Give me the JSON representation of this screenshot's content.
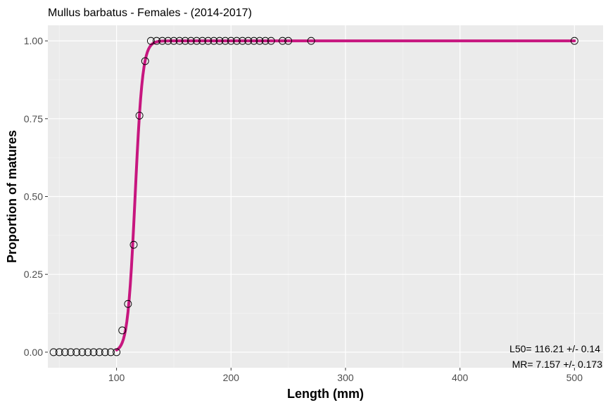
{
  "chart_data": {
    "type": "scatter",
    "title": "Mullus barbatus - Females - (2014-2017)",
    "xlabel": "Length (mm)",
    "ylabel": "Proportion of matures",
    "xlim": [
      40,
      525
    ],
    "ylim": [
      -0.05,
      1.05
    ],
    "x_ticks": [
      100,
      200,
      300,
      400,
      500
    ],
    "y_ticks": [
      0.0,
      0.25,
      0.5,
      0.75,
      1.0
    ],
    "x_tick_labels": [
      "100",
      "200",
      "300",
      "400",
      "500"
    ],
    "y_tick_labels": [
      "0.00",
      "0.25",
      "0.50",
      "0.75",
      "1.00"
    ],
    "grid": true,
    "background": "#ebebeb",
    "series": [
      {
        "kind": "observed_points",
        "marker": "open-circle",
        "color": "#000000",
        "points": [
          [
            45,
            0
          ],
          [
            50,
            0
          ],
          [
            55,
            0
          ],
          [
            60,
            0
          ],
          [
            65,
            0
          ],
          [
            70,
            0
          ],
          [
            75,
            0
          ],
          [
            80,
            0
          ],
          [
            85,
            0
          ],
          [
            90,
            0
          ],
          [
            95,
            0
          ],
          [
            100,
            0.0
          ],
          [
            105,
            0.07
          ],
          [
            110,
            0.155
          ],
          [
            115,
            0.345
          ],
          [
            120,
            0.76
          ],
          [
            125,
            0.935
          ],
          [
            130,
            1
          ],
          [
            135,
            1
          ],
          [
            140,
            1
          ],
          [
            145,
            1
          ],
          [
            150,
            1
          ],
          [
            155,
            1
          ],
          [
            160,
            1
          ],
          [
            165,
            1
          ],
          [
            170,
            1
          ],
          [
            175,
            1
          ],
          [
            180,
            1
          ],
          [
            185,
            1
          ],
          [
            190,
            1
          ],
          [
            195,
            1
          ],
          [
            200,
            1
          ],
          [
            205,
            1
          ],
          [
            210,
            1
          ],
          [
            215,
            1
          ],
          [
            220,
            1
          ],
          [
            225,
            1
          ],
          [
            230,
            1
          ],
          [
            235,
            1
          ],
          [
            245,
            1
          ],
          [
            250,
            1
          ],
          [
            270,
            1
          ],
          [
            500,
            1
          ]
        ]
      },
      {
        "kind": "logistic_fit",
        "color": "#c7167f",
        "l50": 116.21,
        "mr": 7.157,
        "x_range": [
          100,
          500
        ]
      }
    ],
    "annotations": {
      "l50": "L50=  116.21 +/- 0.14",
      "mr": "MR=  7.157 +/- 0.173"
    }
  }
}
